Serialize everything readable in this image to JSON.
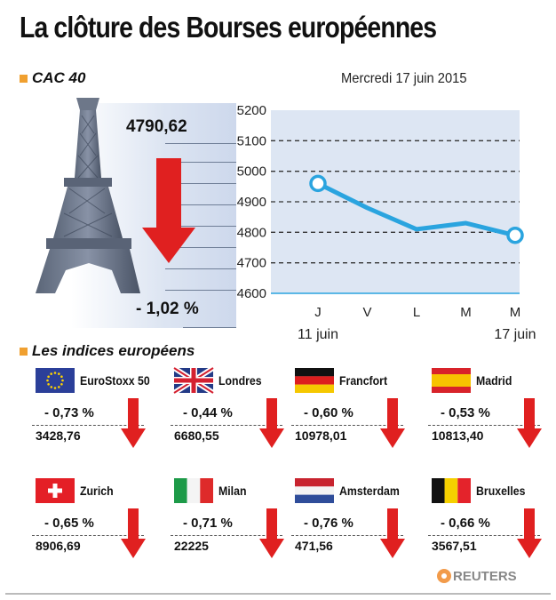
{
  "title": "La clôture des Bourses européennes",
  "cac": {
    "label": "CAC 40",
    "value": "4790,62",
    "change": "- 1,02 %"
  },
  "date": "Mercredi 17 juin 2015",
  "chart_data": {
    "type": "line",
    "title": "",
    "xlabel": "",
    "ylabel": "",
    "categories": [
      "J",
      "V",
      "L",
      "M",
      "M"
    ],
    "x_sub_labels": [
      "11 juin",
      "",
      "",
      "",
      "17 juin"
    ],
    "series": [
      {
        "values": [
          4960,
          4880,
          4810,
          4830,
          4790
        ]
      }
    ],
    "ylim": [
      4600,
      5200
    ],
    "yticks": [
      4600,
      4700,
      4800,
      4900,
      5000,
      5100,
      5200
    ],
    "grid": true,
    "colors": {
      "line": "#2aa4df",
      "background": "#dde6f3",
      "grid": "#333333",
      "axis": "#2aa4df"
    }
  },
  "indices_title": "Les indices européens",
  "indices": [
    {
      "name": "EuroStoxx 50",
      "change": "- 0,73 %",
      "value": "3428,76",
      "flag": "eu"
    },
    {
      "name": "Londres",
      "change": "- 0,44 %",
      "value": "6680,55",
      "flag": "uk"
    },
    {
      "name": "Francfort",
      "change": "- 0,60 %",
      "value": "10978,01",
      "flag": "de"
    },
    {
      "name": "Madrid",
      "change": "- 0,53 %",
      "value": "10813,40",
      "flag": "es"
    },
    {
      "name": "Zurich",
      "change": "- 0,65 %",
      "value": "8906,69",
      "flag": "ch"
    },
    {
      "name": "Milan",
      "change": "- 0,71 %",
      "value": "22225",
      "flag": "it"
    },
    {
      "name": "Amsterdam",
      "change": "- 0,76 %",
      "value": "471,56",
      "flag": "nl"
    },
    {
      "name": "Bruxelles",
      "change": "- 0,66 %",
      "value": "3567,51",
      "flag": "be"
    }
  ],
  "source": "REUTERS",
  "colors": {
    "accent": "#f0a030",
    "arrow": "#e02020"
  }
}
